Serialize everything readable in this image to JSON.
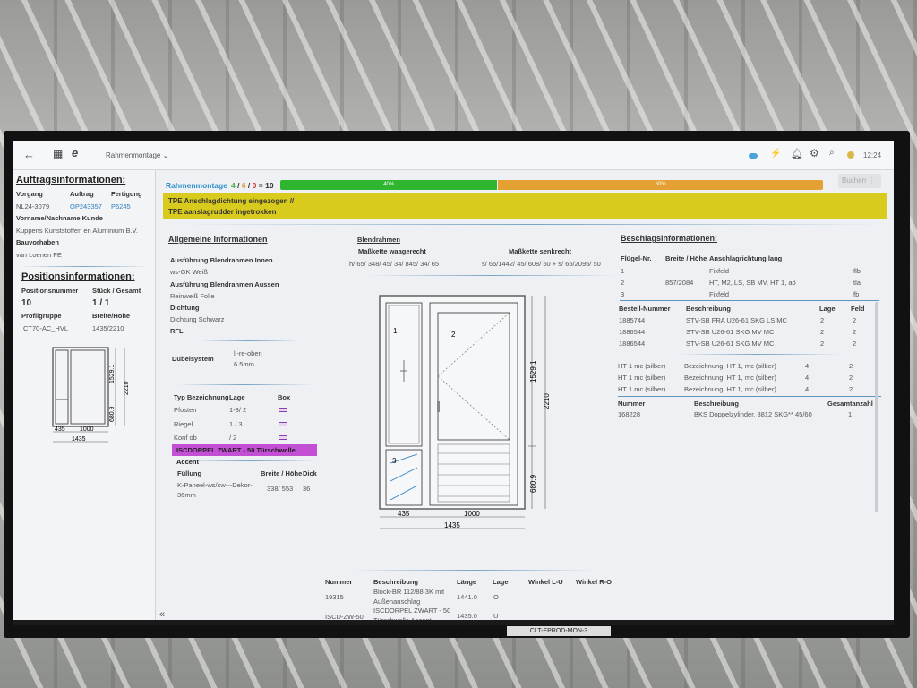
{
  "header": {
    "module": "Rahmenmontage",
    "time": "12:24"
  },
  "left": {
    "order_title": "Auftragsinformationen:",
    "vorgang_label": "Vorgang",
    "vorgang": "NL24-3079",
    "auftrag_label": "Auftrag",
    "auftrag": "OP243357",
    "fertigung_label": "Fertigung",
    "fertigung": "P6245",
    "kunde_label": "Vorname/Nachname Kunde",
    "kunde": "Kuppens Kunststoffen en Aluminium B.V.",
    "bau_label": "Bauvorhaben",
    "bau": "van Loenen FE",
    "pos_title": "Positionsinformationen:",
    "posnr_label": "Positionsnummer",
    "posnr": "10",
    "stueck_label": "Stück / Gesamt",
    "stueck": "1 / 1",
    "profil_label": "Profilgruppe",
    "profil": "CT70-AC_HVL",
    "bh_label": "Breite/Höhe",
    "bh": "1435/2210",
    "dims": {
      "w1": "435",
      "w2": "1000",
      "w": "1435",
      "h1": "1529.1",
      "h2": "680.9",
      "h": "2210"
    }
  },
  "status": {
    "title": "Rahmenmontage",
    "done": "4",
    "open": "6",
    "err": "0",
    "total": "= 10",
    "progress_done": 40,
    "progress_open": 60,
    "done_label": "40%",
    "open_label": "60%",
    "book_button": "Buchen"
  },
  "alert": {
    "line1": "TPE Anschlagdichtung eingezogen //",
    "line2": "TPE aanslagrudder ingetrokken"
  },
  "general": {
    "title": "Allgemeine Informationen",
    "innen_label": "Ausführung Blendrahmen Innen",
    "innen": "ws-GK Weiß",
    "aussen_label": "Ausführung Blendrahmen Aussen",
    "aussen": "Reinweiß Folie",
    "dicht_label": "Dichtung",
    "dicht": "Dichtung Schwarz",
    "rfl_label": "RFL",
    "duebel_label": "Dübelsystem",
    "duebel1": "li-re-oben",
    "duebel2": "6.5mm",
    "typ_headers": [
      "Typ Bezeichnung",
      "Lage",
      "Box"
    ],
    "typ_rows": [
      {
        "typ": "Pfosten",
        "lage": "1-3/ 2"
      },
      {
        "typ": "Riegel",
        "lage": "1 / 3"
      },
      {
        "typ": "Konf ob",
        "lage": "/ 2"
      }
    ],
    "highlight": "ISCDORPEL ZWART - 50 Türschwelle Accent",
    "fuell_headers": [
      "Füllung",
      "Breite / Höhe",
      "Dicke"
    ],
    "fuell": "K-Paneel-ws/cw---Dekor-36mm",
    "fuell_bh": "338/ 553",
    "fuell_d": "36"
  },
  "blendrahmen": {
    "title": "Blendrahmen",
    "waag_label": "Maßkette waagerecht",
    "waag": "h/ 65/ 348/ 45/ 34/ 845/ 34/ 65",
    "senk_label": "Maßkette senkrecht",
    "senk": "s/ 65/1442/ 45/ 608/ 50 + s/ 65/2095/ 50",
    "fields": [
      "1",
      "2",
      "3"
    ]
  },
  "parts": {
    "headers": [
      "Nummer",
      "Beschreibung",
      "Länge",
      "Lage",
      "Winkel L-U",
      "Winkel R-O"
    ],
    "rows": [
      {
        "nr": "19315",
        "desc1": "Block-BR 112/88 3K mit",
        "desc2": "Außenanschlag",
        "len": "1441.0",
        "lage": "O"
      },
      {
        "nr": "ISCD-ZW-50",
        "desc1": "ISCDORPEL ZWART - 50",
        "desc2": "Türschwelle Accent",
        "len": "1435.0",
        "lage": "U"
      }
    ]
  },
  "fittings": {
    "title": "Beschlagsinformationen:",
    "fl_headers": [
      "Flügel-Nr.",
      "Breite / Höhe",
      "Anschlagrichtung lang"
    ],
    "fl_rows": [
      {
        "nr": "1",
        "bh": "",
        "dir": "Fixfeld",
        "code": "flb"
      },
      {
        "nr": "2",
        "bh": "857/2084",
        "dir": "HT, M2, LS, SB MV, HT 1, aö",
        "code": "tla"
      },
      {
        "nr": "3",
        "bh": "",
        "dir": "Fixfeld",
        "code": "fb"
      }
    ],
    "order_headers": [
      "Bestell-Nummer",
      "Beschreibung",
      "Lage",
      "Feld"
    ],
    "order_rows": [
      {
        "nr": "1885744",
        "desc": "STV-SB FRA U26-61 SKG LS MC",
        "lage": "2",
        "feld": "2"
      },
      {
        "nr": "1886544",
        "desc": "STV-SB U26-61 SKG MV MC",
        "lage": "2",
        "feld": "2"
      },
      {
        "nr": "1886544",
        "desc": "STV-SB U26-61 SKG MV MC",
        "lage": "2",
        "feld": "2"
      }
    ],
    "ht_rows": [
      {
        "nr": "HT 1 mc (silber)",
        "desc": "Bezeichnung: HT 1, mc (silber)",
        "lage": "4",
        "feld": "2"
      },
      {
        "nr": "HT 1 mc (silber)",
        "desc": "Bezeichnung: HT 1, mc (silber)",
        "lage": "4",
        "feld": "2"
      },
      {
        "nr": "HT 1 mc (silber)",
        "desc": "Bezeichnung: HT 1, mc (silber)",
        "lage": "4",
        "feld": "2"
      }
    ],
    "cyl_headers": [
      "Nummer",
      "Beschreibung",
      "Gesamtanzahl"
    ],
    "cyl": {
      "nr": "168228",
      "desc": "BKS Doppelzylinder, 8812 SKG** 45/60",
      "count": "1"
    }
  },
  "monitor_label": "CLT-EPROD-MON-3",
  "colors": {
    "done": "#2fb52f",
    "open": "#e5a033",
    "alert": "#d9cb1e",
    "highlight": "#c34fd4",
    "accent": "#2f7fc1"
  }
}
